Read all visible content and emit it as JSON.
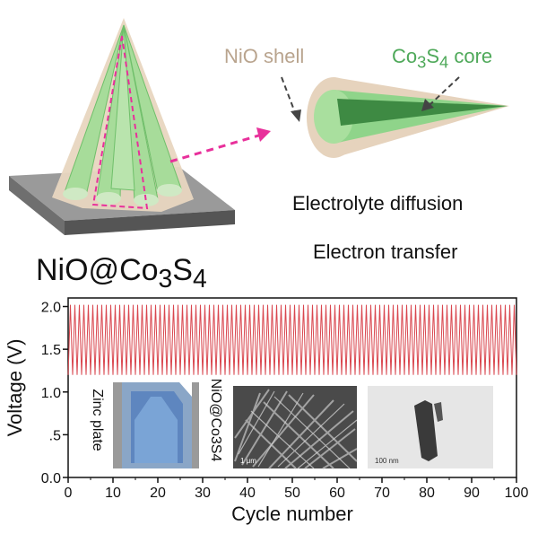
{
  "labels": {
    "shell": "NiO shell",
    "core": "Co3S4 core",
    "diffusion": "Electrolyte diffusion",
    "transfer": "Electron transfer",
    "material": "NiO@Co3S4",
    "inset_zinc": "Zinc plate",
    "inset_cathode": "NiO@Co3S4",
    "sem_scale": "1 μm",
    "tem_scale": "100 nm"
  },
  "colors": {
    "shell": "#e3d1bc",
    "core": "#8fd48a",
    "arrow": "#e8309b",
    "curve": "#d9474f",
    "substrate": "#7a7a7a"
  },
  "chart_data": {
    "type": "line",
    "xlabel": "Cycle number",
    "ylabel": "Voltage (V)",
    "xlim": [
      0,
      100
    ],
    "ylim": [
      0,
      2.1
    ],
    "xticks": [
      0,
      10,
      20,
      30,
      40,
      50,
      60,
      70,
      80,
      90,
      100
    ],
    "yticks": [
      0.0,
      0.5,
      1.0,
      1.5,
      2.0
    ],
    "x_tick_labels": [
      "0",
      "10",
      "20",
      "30",
      "40",
      "50",
      "60",
      "70",
      "80",
      "90",
      "100"
    ],
    "y_tick_labels": [
      "0.0",
      ".5",
      "1.0",
      "1.5",
      "2.0"
    ],
    "series": [
      {
        "cycles": 100,
        "v_min": 1.2,
        "v_max": 2.02
      }
    ],
    "grid": false
  }
}
